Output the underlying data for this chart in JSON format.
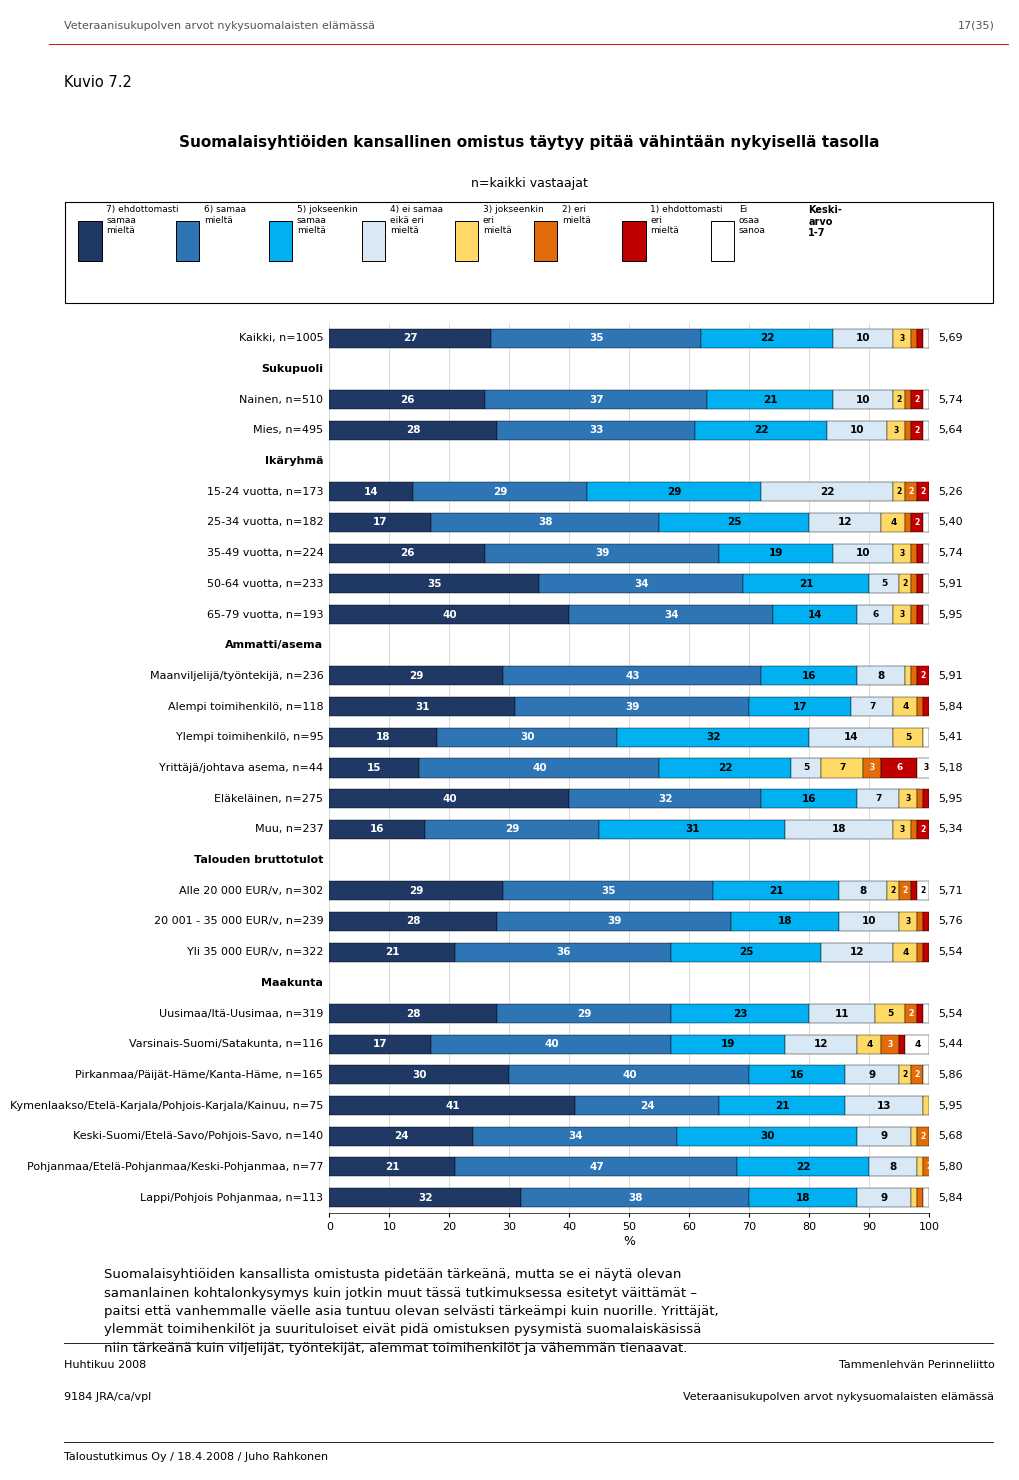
{
  "title": "Suomalaisyhtiöiden kansallinen omistus täytyy pitää vähintään nykyisellä tasolla",
  "subtitle": "n=kaikki vastaajat",
  "header_left": "Veteraanisukupolven arvot nykysuomalaisten elämässä",
  "header_right": "17(35)",
  "footer_left1": "Huhtikuu 2008",
  "footer_left2": "9184 JRA/ca/vpl",
  "footer_right1": "Tammenlehvän Perinneliitto",
  "footer_right2": "Veteraanisukupolven arvot nykysuomalaisten elämässä",
  "bottom_line": "Taloustutkimus Oy / 18.4.2008 / Juho Rahkonen",
  "kuvio": "Kuvio 7.2",
  "legend": [
    {
      "label": "7) ehdottomasti\nsamaa\nmieltä",
      "color": "#1F3864"
    },
    {
      "label": "6) samaa\nmieltä",
      "color": "#2E75B6"
    },
    {
      "label": "5) jokseenkin\nsamaa\nmieltä",
      "color": "#00B0F0"
    },
    {
      "label": "4) ei samaa\neikä eri\nmieltä",
      "color": "#D9E8F5"
    },
    {
      "label": "3) jokseenkin\neri\nmieltä",
      "color": "#FFD966"
    },
    {
      "label": "2) eri\nmieltä",
      "color": "#E26B0A"
    },
    {
      "label": "1) ehdottomasti\neri\nmieltä",
      "color": "#C00000"
    },
    {
      "label": "Ei\nosaa\nsanoa",
      "color": "#FFFFFF"
    }
  ],
  "keskiarvo_label": "Keski-\narvo\n1-7",
  "categories": [
    "Kaikki, n=1005",
    "Sukupuoli",
    "Nainen, n=510",
    "Mies, n=495",
    "Ikäryhmä",
    "15-24 vuotta, n=173",
    "25-34 vuotta, n=182",
    "35-49 vuotta, n=224",
    "50-64 vuotta, n=233",
    "65-79 vuotta, n=193",
    "Ammatti/asema",
    "Maanviljelijä/työntekijä, n=236",
    "Alempi toimihenkilö, n=118",
    "Ylempi toimihenkilö, n=95",
    "Yrittäjä/johtava asema, n=44",
    "Eläkeläinen, n=275",
    "Muu, n=237",
    "Talouden bruttotulot",
    "Alle 20 000 EUR/v, n=302",
    "20 001 - 35 000 EUR/v, n=239",
    "Yli 35 000 EUR/v, n=322",
    "Maakunta",
    "Uusimaa/Itä-Uusimaa, n=319",
    "Varsinais-Suomi/Satakunta, n=116",
    "Pirkanmaa/Päijät-Häme/Kanta-Häme, n=165",
    "Kymenlaakso/Etelä-Karjala/Pohjois-Karjala/Kainuu, n=75",
    "Keski-Suomi/Etelä-Savo/Pohjois-Savo, n=140",
    "Pohjanmaa/Etelä-Pohjanmaa/Keski-Pohjanmaa, n=77",
    "Lappi/Pohjois Pohjanmaa, n=113"
  ],
  "is_header": [
    false,
    true,
    false,
    false,
    true,
    false,
    false,
    false,
    false,
    false,
    true,
    false,
    false,
    false,
    false,
    false,
    false,
    true,
    false,
    false,
    false,
    true,
    false,
    false,
    false,
    false,
    false,
    false,
    false
  ],
  "data": [
    [
      27,
      35,
      22,
      10,
      3,
      1,
      1,
      1
    ],
    [
      0,
      0,
      0,
      0,
      0,
      0,
      0,
      0
    ],
    [
      26,
      37,
      21,
      10,
      2,
      1,
      2,
      1
    ],
    [
      28,
      33,
      22,
      10,
      3,
      1,
      2,
      1
    ],
    [
      0,
      0,
      0,
      0,
      0,
      0,
      0,
      0
    ],
    [
      14,
      29,
      29,
      22,
      2,
      2,
      2,
      0
    ],
    [
      17,
      38,
      25,
      12,
      4,
      1,
      2,
      1
    ],
    [
      26,
      39,
      19,
      10,
      3,
      1,
      1,
      1
    ],
    [
      35,
      34,
      21,
      5,
      2,
      1,
      1,
      1
    ],
    [
      40,
      34,
      14,
      6,
      3,
      1,
      1,
      1
    ],
    [
      0,
      0,
      0,
      0,
      0,
      0,
      0,
      0
    ],
    [
      29,
      43,
      16,
      8,
      1,
      1,
      2,
      0
    ],
    [
      31,
      39,
      17,
      7,
      4,
      1,
      1,
      0
    ],
    [
      18,
      30,
      32,
      14,
      5,
      0,
      0,
      1
    ],
    [
      15,
      40,
      22,
      5,
      7,
      3,
      6,
      3
    ],
    [
      40,
      32,
      16,
      7,
      3,
      1,
      1,
      0
    ],
    [
      16,
      29,
      31,
      18,
      3,
      1,
      2,
      0
    ],
    [
      0,
      0,
      0,
      0,
      0,
      0,
      0,
      0
    ],
    [
      29,
      35,
      21,
      8,
      2,
      2,
      1,
      2
    ],
    [
      28,
      39,
      18,
      10,
      3,
      1,
      1,
      0
    ],
    [
      21,
      36,
      25,
      12,
      4,
      1,
      1,
      0
    ],
    [
      0,
      0,
      0,
      0,
      0,
      0,
      0,
      0
    ],
    [
      28,
      29,
      23,
      11,
      5,
      2,
      1,
      1
    ],
    [
      17,
      40,
      19,
      12,
      4,
      3,
      1,
      4
    ],
    [
      30,
      40,
      16,
      9,
      2,
      2,
      0,
      1
    ],
    [
      41,
      24,
      21,
      13,
      1,
      0,
      0,
      0
    ],
    [
      24,
      34,
      30,
      9,
      1,
      2,
      0,
      0
    ],
    [
      21,
      47,
      22,
      8,
      1,
      2,
      0,
      0
    ],
    [
      32,
      38,
      18,
      9,
      1,
      1,
      0,
      1
    ]
  ],
  "keskiarvot": [
    "5,69",
    "",
    "5,74",
    "5,64",
    "",
    "5,26",
    "5,40",
    "5,74",
    "5,91",
    "5,95",
    "",
    "5,91",
    "5,84",
    "5,41",
    "5,18",
    "5,95",
    "5,34",
    "",
    "5,71",
    "5,76",
    "5,54",
    "",
    "5,54",
    "5,44",
    "5,86",
    "5,95",
    "5,68",
    "5,80",
    "5,84"
  ],
  "colors": [
    "#1F3864",
    "#2E75B6",
    "#00B0F0",
    "#D9E8F5",
    "#FFD966",
    "#E26B0A",
    "#C00000",
    "#FFFFFF"
  ],
  "paragraph_text": "Suomalaisyhtiöiden kansallista omistusta pidetään tärkeänä, mutta se ei näytä olevan\nsamanlainen kohtalonkysymys kuin jotkin muut tässä tutkimuksessa esitetyt väittämät –\npaitsi että vanhemmalle väelle asia tuntuu olevan selvästi tärkeämpi kuin nuorille. Yrittäjät,\nylemmät toimihenkilöt ja suurituloiset eivät pidä omistuksen pysymistä suomalaiskäsissä\nniin tärkeänä kuin viljelijät, työntekijät, alemmat toimihenkilöt ja vähemmän tienaavat."
}
